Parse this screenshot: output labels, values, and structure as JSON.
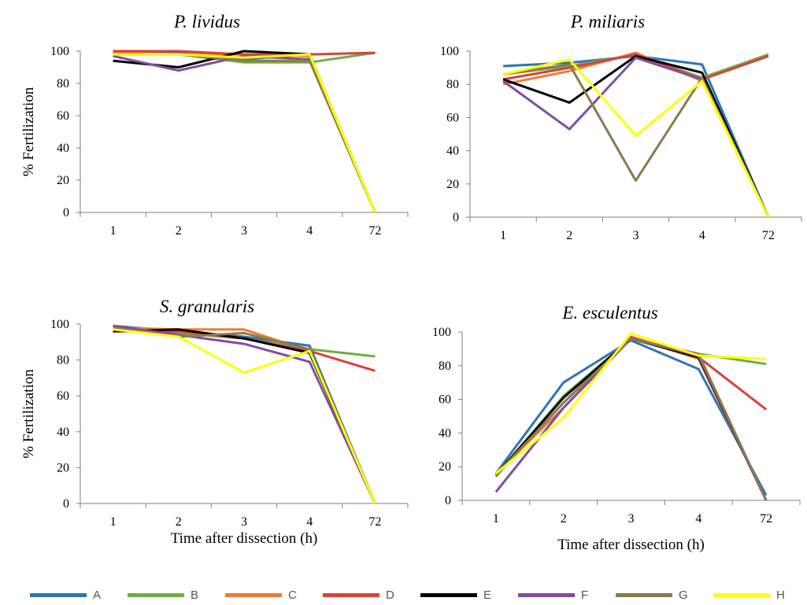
{
  "series_names": [
    "A",
    "B",
    "C",
    "D",
    "E",
    "F",
    "G",
    "H"
  ],
  "series_colors": {
    "A": "#2e75b6",
    "B": "#70ad47",
    "C": "#ed7d31",
    "D": "#d9413a",
    "E": "#000000",
    "F": "#7f4fa0",
    "G": "#8c7a4e",
    "H": "#ffff00"
  },
  "chart_data": [
    {
      "type": "line",
      "title": "P. lividus",
      "x": [
        "1",
        "2",
        "3",
        "4",
        "72"
      ],
      "ylabel": "% Fertilization",
      "xlabel": "",
      "ylim": [
        0,
        100
      ],
      "yticks": [
        0,
        20,
        40,
        60,
        80,
        100
      ],
      "series": [
        {
          "name": "A",
          "values": [
            99,
            99,
            95,
            98,
            0
          ]
        },
        {
          "name": "B",
          "values": [
            98,
            98,
            93,
            93,
            99
          ]
        },
        {
          "name": "C",
          "values": [
            99,
            98,
            98,
            97,
            0
          ]
        },
        {
          "name": "D",
          "values": [
            100,
            100,
            98,
            98,
            99
          ]
        },
        {
          "name": "E",
          "values": [
            94,
            90,
            100,
            98,
            0
          ]
        },
        {
          "name": "F",
          "values": [
            97,
            88,
            97,
            95,
            0
          ]
        },
        {
          "name": "G",
          "values": [
            98,
            98,
            94,
            94,
            0
          ]
        },
        {
          "name": "H",
          "values": [
            98,
            98,
            96,
            98,
            0
          ]
        }
      ]
    },
    {
      "type": "line",
      "title": "P. miliaris",
      "x": [
        "1",
        "2",
        "3",
        "4",
        "72"
      ],
      "ylabel": "",
      "xlabel": "",
      "ylim": [
        0,
        100
      ],
      "yticks": [
        0,
        20,
        40,
        60,
        80,
        100
      ],
      "series": [
        {
          "name": "A",
          "values": [
            91,
            93,
            97,
            92,
            0
          ]
        },
        {
          "name": "B",
          "values": [
            86,
            91,
            98,
            84,
            98
          ]
        },
        {
          "name": "C",
          "values": [
            80,
            88,
            99,
            82,
            0
          ]
        },
        {
          "name": "D",
          "values": [
            83,
            90,
            98,
            83,
            97
          ]
        },
        {
          "name": "E",
          "values": [
            83,
            69,
            97,
            87,
            0
          ]
        },
        {
          "name": "F",
          "values": [
            82,
            53,
            96,
            83,
            0
          ]
        },
        {
          "name": "G",
          "values": [
            86,
            92,
            22,
            84,
            0
          ]
        },
        {
          "name": "H",
          "values": [
            86,
            95,
            49,
            82,
            0
          ]
        }
      ]
    },
    {
      "type": "line",
      "title": "S. granularis",
      "x": [
        "1",
        "2",
        "3",
        "4",
        "72"
      ],
      "ylabel": "% Fertilization",
      "xlabel": "Time after dissection (h)",
      "ylim": [
        0,
        100
      ],
      "yticks": [
        0,
        20,
        40,
        60,
        80,
        100
      ],
      "series": [
        {
          "name": "A",
          "values": [
            99,
            96,
            93,
            88,
            0
          ]
        },
        {
          "name": "B",
          "values": [
            97,
            95,
            92,
            86,
            82
          ]
        },
        {
          "name": "C",
          "values": [
            98,
            97,
            97,
            85,
            0
          ]
        },
        {
          "name": "D",
          "values": [
            96,
            96,
            92,
            85,
            74
          ]
        },
        {
          "name": "E",
          "values": [
            96,
            97,
            92,
            84,
            0
          ]
        },
        {
          "name": "F",
          "values": [
            99,
            94,
            89,
            79,
            0
          ]
        },
        {
          "name": "G",
          "values": [
            98,
            93,
            95,
            86,
            0
          ]
        },
        {
          "name": "H",
          "values": [
            97,
            93,
            73,
            85,
            0
          ]
        }
      ]
    },
    {
      "type": "line",
      "title": "E. esculentus",
      "x": [
        "1",
        "2",
        "3",
        "4",
        "72"
      ],
      "ylabel": "",
      "xlabel": "Time after dissection (h)",
      "ylim": [
        0,
        100
      ],
      "yticks": [
        0,
        20,
        40,
        60,
        80,
        100
      ],
      "series": [
        {
          "name": "A",
          "values": [
            16,
            70,
            95,
            78,
            3
          ]
        },
        {
          "name": "B",
          "values": [
            14,
            62,
            96,
            87,
            81
          ]
        },
        {
          "name": "C",
          "values": [
            16,
            55,
            97,
            84,
            0
          ]
        },
        {
          "name": "D",
          "values": [
            15,
            58,
            97,
            85,
            54
          ]
        },
        {
          "name": "E",
          "values": [
            15,
            61,
            96,
            85,
            0
          ]
        },
        {
          "name": "F",
          "values": [
            5,
            55,
            96,
            86,
            0
          ]
        },
        {
          "name": "G",
          "values": [
            15,
            58,
            96,
            87,
            0
          ]
        },
        {
          "name": "H",
          "values": [
            16,
            49,
            99,
            86,
            84
          ]
        }
      ]
    }
  ]
}
